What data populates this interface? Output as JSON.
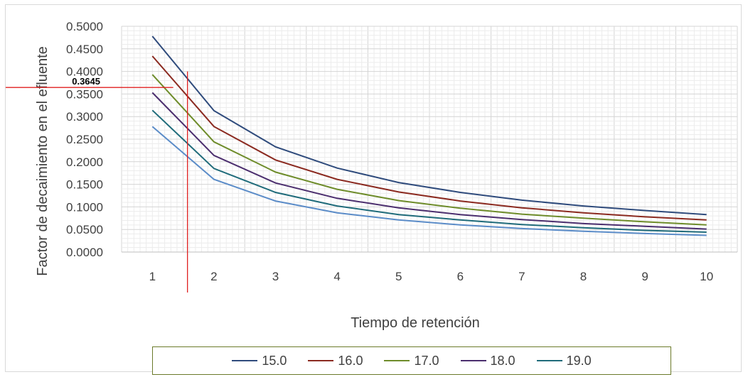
{
  "chart_data": {
    "type": "line",
    "title": "",
    "xlabel": "Tiempo de retención",
    "ylabel": "Factor de decaimiento en el efluente",
    "categories": [
      "1",
      "2",
      "3",
      "4",
      "5",
      "6",
      "7",
      "8",
      "9",
      "10"
    ],
    "ylim": [
      0,
      0.5
    ],
    "yticks": [
      "0.0000",
      "0.0500",
      "0.1000",
      "0.1500",
      "0.2000",
      "0.2500",
      "0.3000",
      "0.3500",
      "0.4000",
      "0.4500",
      "0.5000"
    ],
    "grid": true,
    "legend_position": "bottom",
    "series": [
      {
        "name": "15.0",
        "color": "#2f4b7c",
        "values": [
          0.478,
          0.313,
          0.233,
          0.186,
          0.154,
          0.132,
          0.115,
          0.102,
          0.092,
          0.083
        ]
      },
      {
        "name": "16.0",
        "color": "#8b2a20",
        "values": [
          0.434,
          0.278,
          0.204,
          0.161,
          0.133,
          0.113,
          0.098,
          0.087,
          0.078,
          0.071
        ]
      },
      {
        "name": "17.0",
        "color": "#6e8c2a",
        "values": [
          0.393,
          0.244,
          0.177,
          0.139,
          0.114,
          0.097,
          0.084,
          0.075,
          0.067,
          0.06
        ]
      },
      {
        "name": "18.0",
        "color": "#4b2e6e",
        "values": [
          0.353,
          0.214,
          0.153,
          0.119,
          0.098,
          0.083,
          0.072,
          0.063,
          0.057,
          0.051
        ]
      },
      {
        "name": "19.0",
        "color": "#1f6b7a",
        "values": [
          0.314,
          0.185,
          0.132,
          0.102,
          0.083,
          0.071,
          0.061,
          0.054,
          0.048,
          0.044
        ]
      },
      {
        "name": "",
        "color": "#5b8cc8",
        "values": [
          0.278,
          0.161,
          0.113,
          0.087,
          0.071,
          0.06,
          0.052,
          0.046,
          0.041,
          0.037
        ]
      }
    ],
    "annotations": [
      {
        "text": "0.3645",
        "y": 0.3645,
        "x": 1.57,
        "color": "#e02020"
      }
    ]
  }
}
